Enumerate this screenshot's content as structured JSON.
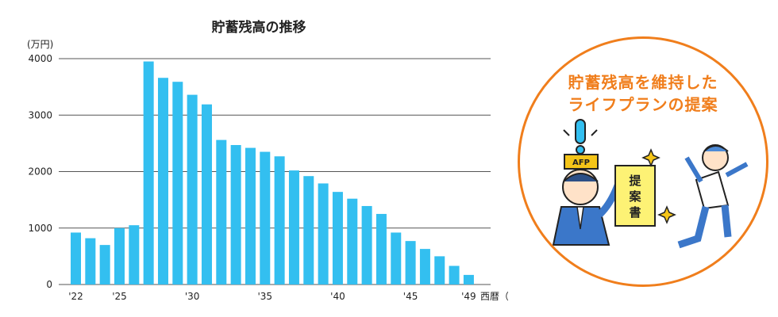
{
  "chart_data": {
    "type": "bar",
    "title": "貯蓄残高の推移",
    "ylabel": "(万円)",
    "xlabel": "西暦（年度）",
    "ylim": [
      0,
      4000
    ],
    "yticks": [
      0,
      1000,
      2000,
      3000,
      4000
    ],
    "grid": true,
    "categories": [
      "2022",
      "2023",
      "2024",
      "2025",
      "2026",
      "2027",
      "2028",
      "2029",
      "2030",
      "2031",
      "2032",
      "2033",
      "2034",
      "2035",
      "2036",
      "2037",
      "2038",
      "2039",
      "2040",
      "2041",
      "2042",
      "2043",
      "2044",
      "2045",
      "2046",
      "2047",
      "2048",
      "2049"
    ],
    "xtick_labels": [
      {
        "index": 0,
        "label": "'22"
      },
      {
        "index": 3,
        "label": "'25"
      },
      {
        "index": 8,
        "label": "'30"
      },
      {
        "index": 13,
        "label": "'35"
      },
      {
        "index": 18,
        "label": "'40"
      },
      {
        "index": 23,
        "label": "'45"
      },
      {
        "index": 27,
        "label": "'49"
      }
    ],
    "values": [
      920,
      820,
      700,
      1000,
      1050,
      3950,
      3660,
      3590,
      3360,
      3190,
      2560,
      2470,
      2420,
      2350,
      2270,
      2020,
      1920,
      1790,
      1640,
      1520,
      1390,
      1250,
      920,
      770,
      630,
      500,
      330,
      170
    ],
    "colors": {
      "bar": "#33bff0",
      "grid": "#555555"
    }
  },
  "illustration": {
    "title_line1": "貯蓄残高を維持した",
    "title_line2": "ライフプランの提案",
    "badge": "AFP",
    "document_chars": [
      "提",
      "案",
      "書"
    ],
    "colors": {
      "accent": "#f07e1c",
      "badge": "#f5c518",
      "document": "#fdf275",
      "suit": "#3b77c9"
    }
  }
}
